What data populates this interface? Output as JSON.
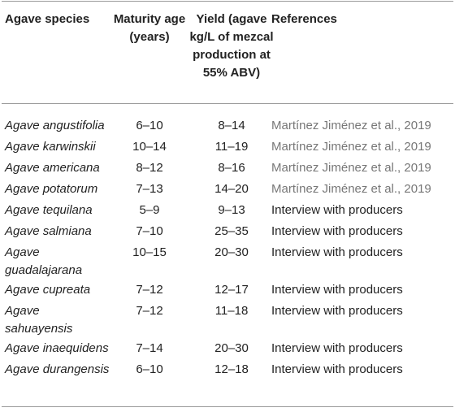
{
  "headers": {
    "species": "Agave species",
    "maturity": "Maturity age (years)",
    "yield": "Yield (agave kg/L of mezcal production at 55% ABV)",
    "references": "References"
  },
  "rows": [
    {
      "species": "Agave angustifolia",
      "maturity": "6–10",
      "yield": "8–14",
      "reference": "Martínez Jiménez et al., 2019"
    },
    {
      "species": "Agave karwinskii",
      "maturity": "10–14",
      "yield": "11–19",
      "reference": "Martínez Jiménez et al., 2019"
    },
    {
      "species": "Agave americana",
      "maturity": "8–12",
      "yield": "8–16",
      "reference": "Martínez Jiménez et al., 2019"
    },
    {
      "species": "Agave potatorum",
      "maturity": "7–13",
      "yield": "14–20",
      "reference": "Martínez Jiménez et al., 2019"
    },
    {
      "species": "Agave tequilana",
      "maturity": "5–9",
      "yield": "9–13",
      "reference": "Interview with producers"
    },
    {
      "species": "Agave salmiana",
      "maturity": "7–10",
      "yield": "25–35",
      "reference": "Interview with producers"
    },
    {
      "species": "Agave guadalajarana",
      "maturity": "10–15",
      "yield": "20–30",
      "reference": "Interview with producers"
    },
    {
      "species": "Agave cupreata",
      "maturity": "7–12",
      "yield": "12–17",
      "reference": "Interview with producers"
    },
    {
      "species": "Agave sahuayensis",
      "maturity": "7–12",
      "yield": "11–18",
      "reference": "Interview with producers"
    },
    {
      "species": "Agave inaequidens",
      "maturity": "7–14",
      "yield": "20–30",
      "reference": "Interview with producers"
    },
    {
      "species": "Agave durangensis",
      "maturity": "6–10",
      "yield": "12–18",
      "reference": "Interview with producers"
    }
  ]
}
